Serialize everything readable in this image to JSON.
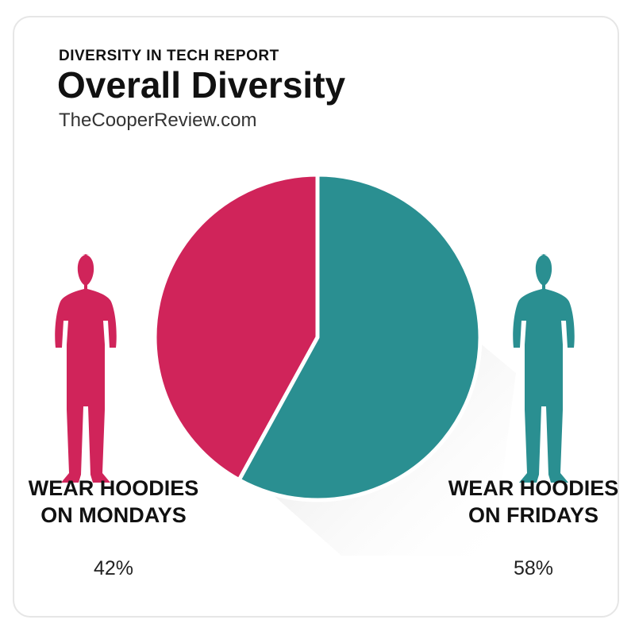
{
  "chart_data": {
    "type": "pie",
    "kicker": "DIVERSITY IN TECH REPORT",
    "title": "Overall Diversity",
    "subtitle": "TheCooperReview.com",
    "categories": [
      "WEAR HOODIES ON MONDAYS",
      "WEAR HOODIES ON FRIDAYS"
    ],
    "values": [
      42,
      58
    ],
    "value_labels": [
      "42%",
      "58%"
    ],
    "colors": [
      "#d0245a",
      "#2a8f91"
    ]
  }
}
